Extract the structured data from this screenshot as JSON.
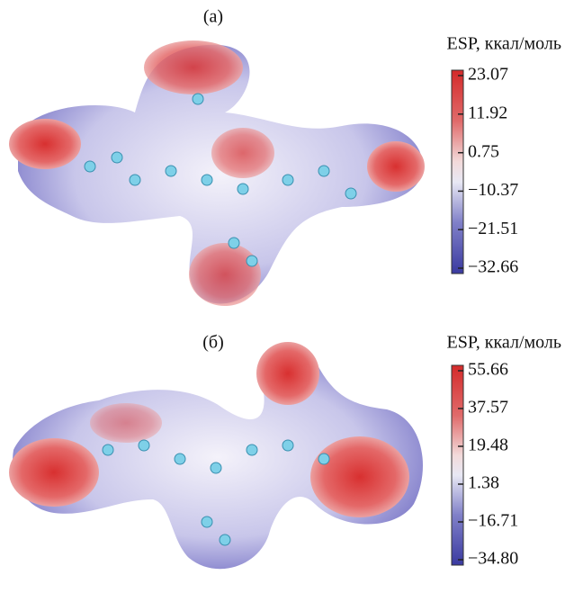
{
  "panels": [
    {
      "label": "(a)",
      "colorbar": {
        "title": "ESP, ккал/моль",
        "lim": [
          -32.66,
          23.07
        ],
        "ticks": [
          23.07,
          11.92,
          0.75,
          {
            "value": -10.37,
            "label": "−10.37"
          },
          {
            "value": -21.51,
            "label": "−21.51"
          },
          {
            "value": -32.66,
            "label": "−32.66"
          }
        ]
      }
    },
    {
      "label": "(б)",
      "colorbar": {
        "title": "ESP, ккал/моль",
        "lim": [
          -34.8,
          55.66
        ],
        "ticks": [
          55.66,
          37.57,
          19.48,
          1.38,
          {
            "value": -16.71,
            "label": "−16.71"
          },
          {
            "value": -34.8,
            "label": "−34.80"
          }
        ]
      }
    }
  ]
}
